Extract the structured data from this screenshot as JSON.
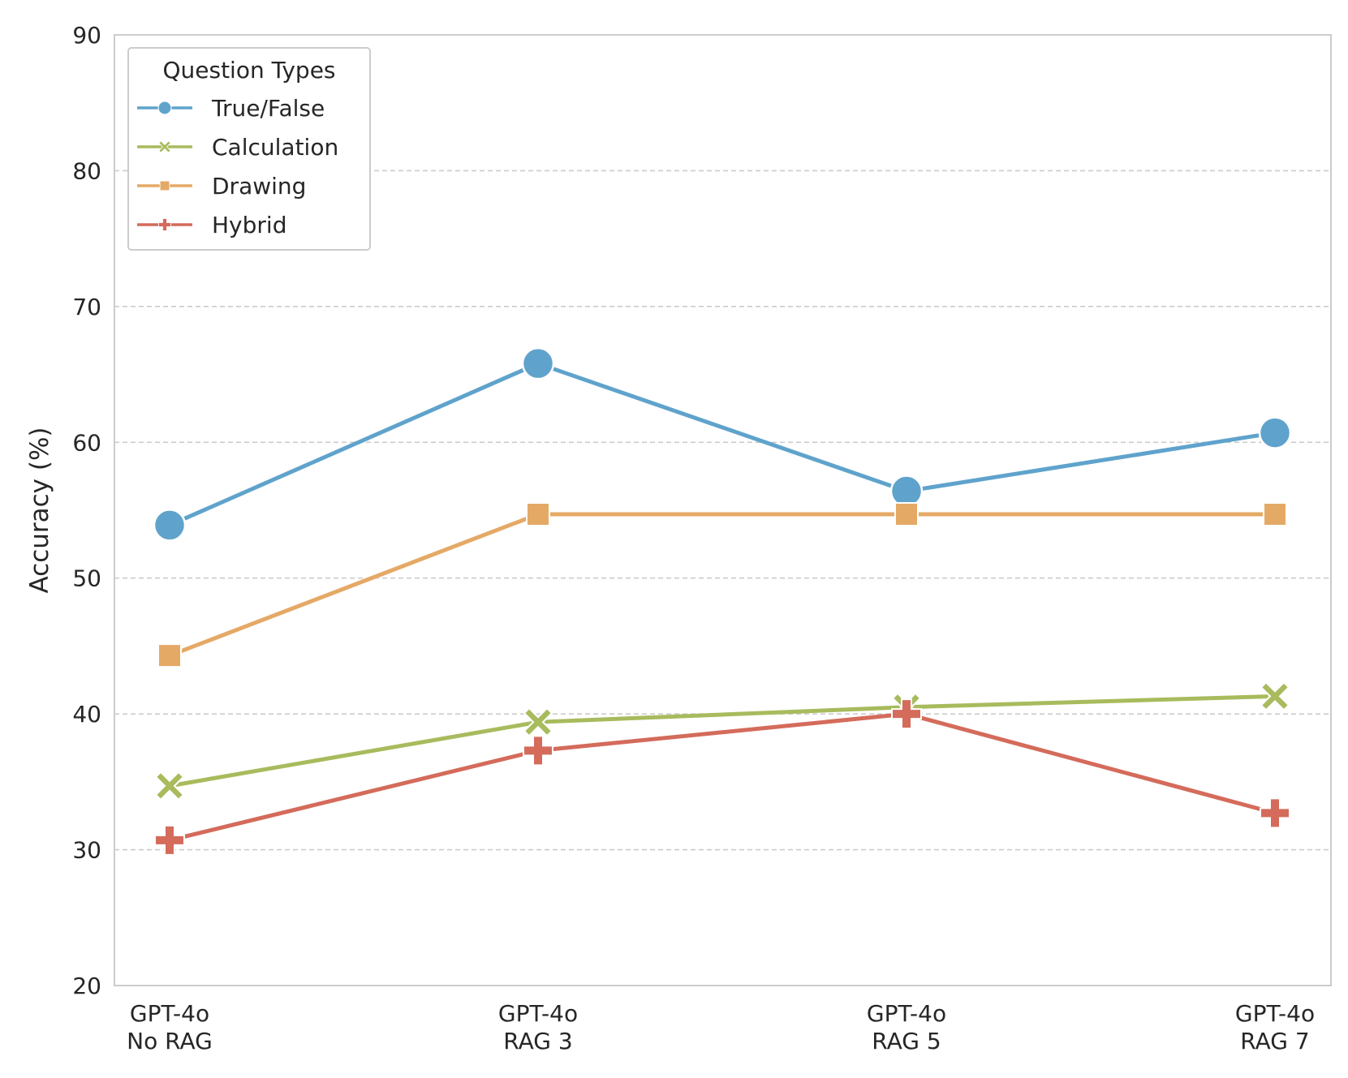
{
  "chart_data": {
    "type": "line",
    "title": "",
    "xlabel": "",
    "ylabel": "Accuracy (%)",
    "ylim": [
      20,
      90
    ],
    "yticks": [
      20,
      30,
      40,
      50,
      60,
      70,
      80,
      90
    ],
    "grid": "horizontal-dashed",
    "categories": [
      [
        "GPT-4o",
        "No RAG"
      ],
      [
        "GPT-4o",
        "RAG 3"
      ],
      [
        "GPT-4o",
        "RAG 5"
      ],
      [
        "GPT-4o",
        "RAG 7"
      ]
    ],
    "legend": {
      "title": "Question Types",
      "placement": "top-left"
    },
    "series": [
      {
        "name": "True/False",
        "color": "#5fa3cc",
        "marker": "circle",
        "values": [
          53.9,
          65.8,
          56.4,
          60.7
        ]
      },
      {
        "name": "Calculation",
        "color": "#a8bb5d",
        "marker": "x",
        "values": [
          34.7,
          39.4,
          40.5,
          41.3
        ]
      },
      {
        "name": "Drawing",
        "color": "#e5a966",
        "marker": "square",
        "values": [
          44.3,
          54.7,
          54.7,
          54.7
        ]
      },
      {
        "name": "Hybrid",
        "color": "#d46b5b",
        "marker": "plus",
        "values": [
          30.7,
          37.3,
          40.0,
          32.7
        ]
      }
    ]
  }
}
